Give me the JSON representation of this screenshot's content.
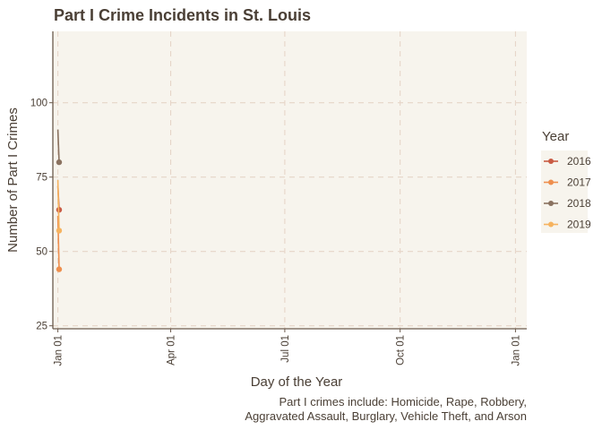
{
  "chart_data": {
    "type": "line",
    "title": "Part I Crime Incidents in St. Louis",
    "xlabel": "Day of the Year",
    "ylabel": "Number of Part I Crimes",
    "caption_lines": [
      "Part I crimes include: Homicide, Rape, Robbery,",
      "Aggravated Assault, Burglary, Vehicle Theft, and Arson"
    ],
    "x_ticks": [
      "Jan 01",
      "Apr 01",
      "Jul 01",
      "Oct 01",
      "Jan 01"
    ],
    "x_tick_days": [
      1,
      91,
      182,
      274,
      366
    ],
    "xlim": [
      -3,
      375
    ],
    "y_ticks": [
      25,
      50,
      75,
      100
    ],
    "ylim": [
      24,
      124
    ],
    "grid": true,
    "legend": {
      "title": "Year",
      "position": "right"
    },
    "colors": {
      "panel_bg": "#f7f4ed",
      "grid": "#e6d5c8",
      "axis": "#6b5a4c",
      "text": "#4a3f35",
      "legend_bg": "#f7f4ed"
    },
    "series": [
      {
        "name": "2016",
        "color": "#c95b43",
        "x": [
          1,
          2
        ],
        "y": [
          72,
          64
        ]
      },
      {
        "name": "2017",
        "color": "#ee8f4e",
        "x": [
          1,
          2
        ],
        "y": [
          62,
          44
        ]
      },
      {
        "name": "2018",
        "color": "#8a7260",
        "x": [
          1,
          2
        ],
        "y": [
          91,
          80
        ]
      },
      {
        "name": "2019",
        "color": "#f6b35f",
        "x": [
          1,
          2
        ],
        "y": [
          74,
          57
        ]
      }
    ]
  }
}
